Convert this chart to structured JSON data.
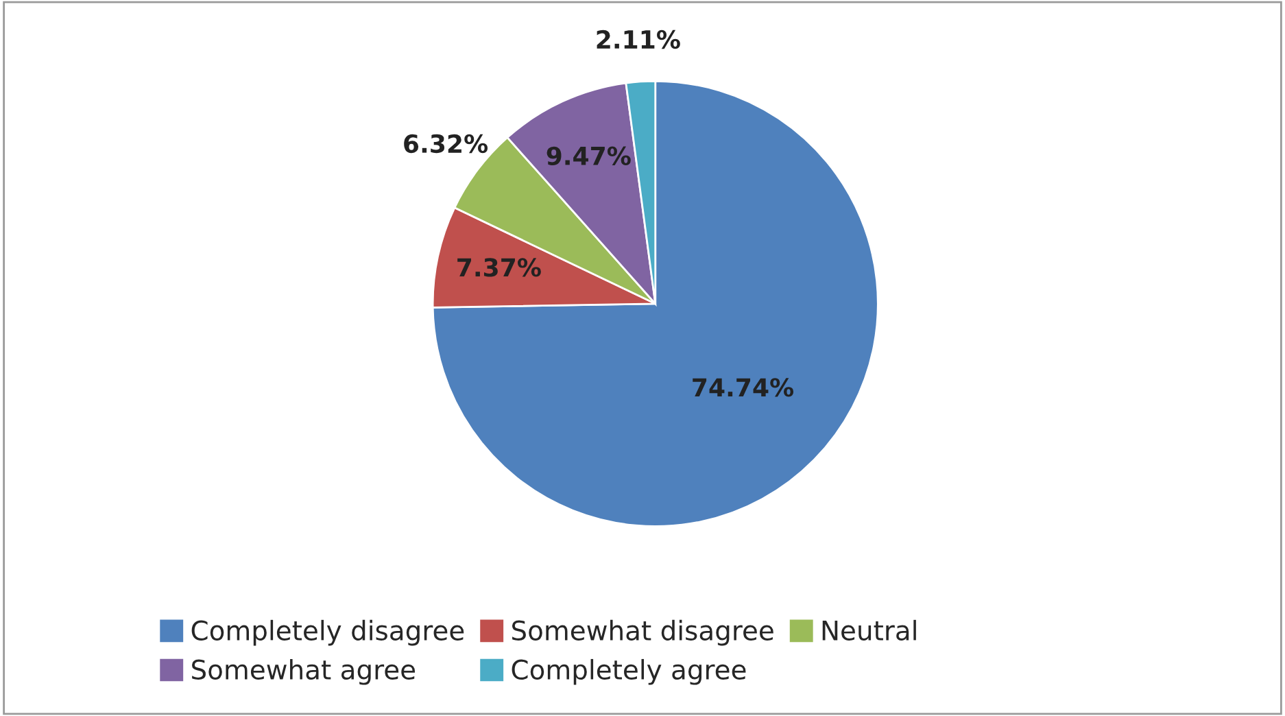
{
  "chart_data": {
    "type": "pie",
    "categories": [
      "Completely disagree",
      "Somewhat disagree",
      "Neutral",
      "Somewhat agree",
      "Completely agree"
    ],
    "values": [
      74.74,
      7.37,
      6.32,
      9.47,
      2.11
    ],
    "value_labels": [
      "74.74%",
      "7.37%",
      "6.32%",
      "9.47%",
      "2.11%"
    ],
    "colors": [
      "#4f81bd",
      "#c0504d",
      "#9bbb59",
      "#8064a2",
      "#4bacc6"
    ],
    "legend": "bottom"
  }
}
